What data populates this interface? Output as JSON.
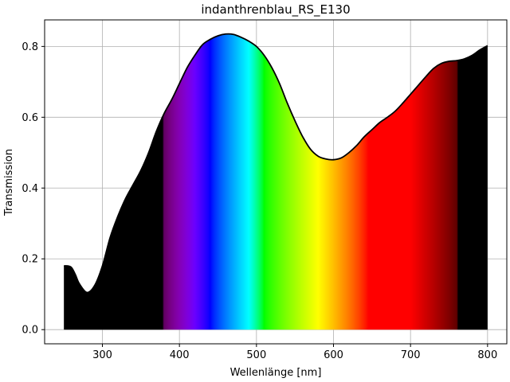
{
  "chart_data": {
    "type": "area",
    "title": "indanthrenblau_RS_E130",
    "xlabel": "Wellenlänge [nm]",
    "ylabel": "Transmission",
    "xlim": [
      225,
      825
    ],
    "ylim": [
      -0.04,
      0.875
    ],
    "xticks": [
      300,
      400,
      500,
      600,
      700,
      800
    ],
    "yticks": [
      0.0,
      0.2,
      0.4,
      0.6,
      0.8
    ],
    "xtick_labels": [
      "300",
      "400",
      "500",
      "600",
      "700",
      "800"
    ],
    "ytick_labels": [
      "0.0",
      "0.2",
      "0.4",
      "0.6",
      "0.8"
    ],
    "grid": true,
    "fill": "visible spectrum gradient between 380 and 760 nm, black outside",
    "line_color": "#000000",
    "x": [
      250,
      255,
      260,
      265,
      270,
      280,
      290,
      300,
      310,
      320,
      330,
      340,
      350,
      360,
      370,
      380,
      390,
      400,
      410,
      420,
      430,
      440,
      450,
      460,
      470,
      480,
      490,
      500,
      510,
      520,
      530,
      540,
      550,
      560,
      570,
      580,
      590,
      600,
      610,
      620,
      630,
      640,
      650,
      660,
      670,
      680,
      690,
      700,
      710,
      720,
      730,
      740,
      750,
      760,
      770,
      780,
      790,
      800
    ],
    "y": [
      0.18,
      0.18,
      0.175,
      0.155,
      0.13,
      0.105,
      0.125,
      0.18,
      0.26,
      0.32,
      0.37,
      0.41,
      0.45,
      0.5,
      0.56,
      0.61,
      0.65,
      0.695,
      0.74,
      0.775,
      0.805,
      0.82,
      0.83,
      0.835,
      0.834,
      0.826,
      0.815,
      0.8,
      0.775,
      0.74,
      0.695,
      0.64,
      0.59,
      0.545,
      0.51,
      0.49,
      0.482,
      0.48,
      0.485,
      0.5,
      0.52,
      0.545,
      0.565,
      0.585,
      0.6,
      0.617,
      0.64,
      0.665,
      0.69,
      0.715,
      0.738,
      0.752,
      0.758,
      0.76,
      0.765,
      0.775,
      0.79,
      0.802
    ]
  }
}
